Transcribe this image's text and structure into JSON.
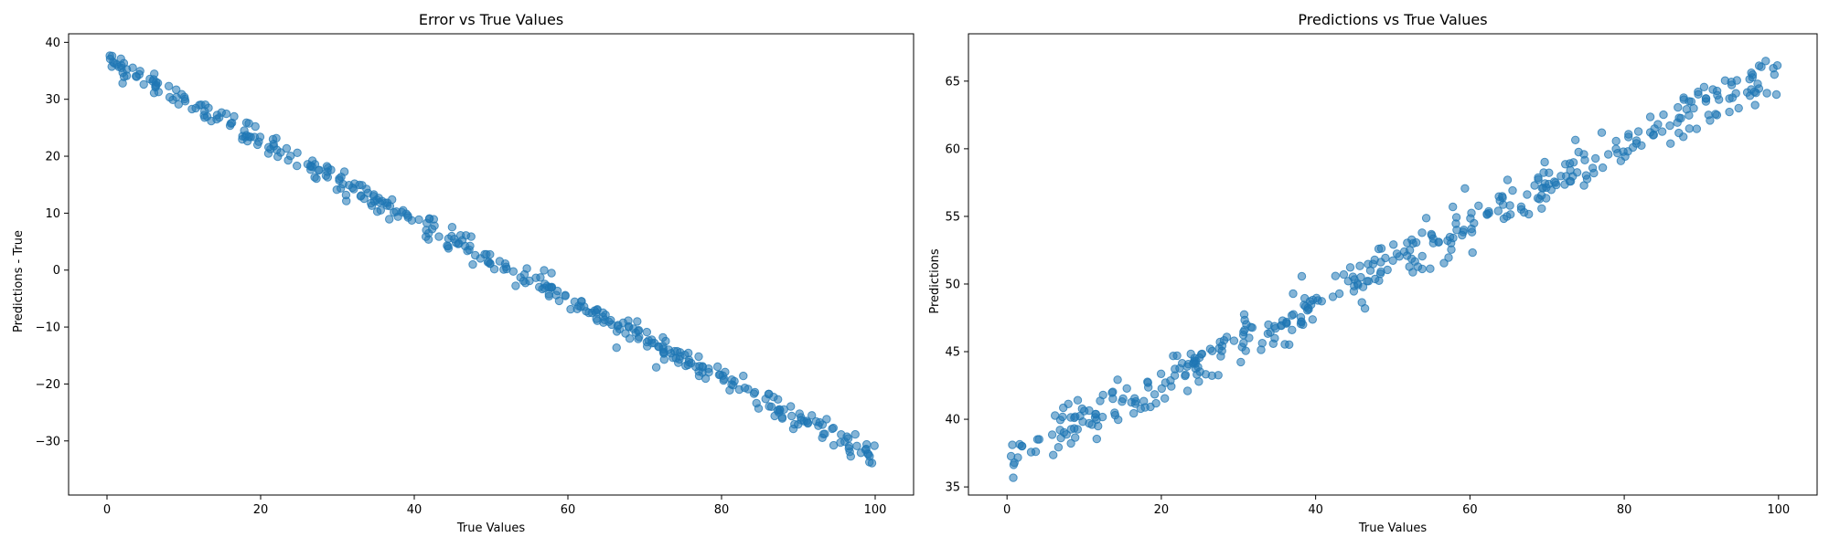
{
  "chart_data": [
    {
      "type": "scatter",
      "title": "Error vs True Values",
      "xlabel": "True Values",
      "ylabel": "Predictions - True",
      "xlim": [
        -5,
        105
      ],
      "ylim": [
        -39.5,
        41.5
      ],
      "xticks": [
        0,
        20,
        40,
        60,
        80,
        100
      ],
      "yticks": [
        -30,
        -20,
        -10,
        0,
        10,
        20,
        30,
        40
      ],
      "grid": false,
      "color": "#1f77b4",
      "trend": {
        "intercept": 37,
        "slope": -0.7,
        "noise": 1.0,
        "n": 400
      },
      "series": [
        {
          "x": [
            0,
            10,
            20,
            30,
            40,
            50,
            60,
            70,
            80,
            90,
            100
          ],
          "y": [
            37,
            30,
            23,
            16,
            9,
            2,
            -5,
            -12,
            -19,
            -26,
            -33
          ]
        }
      ]
    },
    {
      "type": "scatter",
      "title": "Predictions vs True Values",
      "xlabel": "True Values",
      "ylabel": "Predictions",
      "xlim": [
        -5,
        105
      ],
      "ylim": [
        34.4,
        68.5
      ],
      "xticks": [
        0,
        20,
        40,
        60,
        80,
        100
      ],
      "yticks": [
        35,
        40,
        45,
        50,
        55,
        60,
        65
      ],
      "grid": false,
      "color": "#1f77b4",
      "trend": {
        "intercept": 37,
        "slope": 0.29,
        "noise": 0.9,
        "n": 400
      },
      "series": [
        {
          "x": [
            0,
            10,
            20,
            30,
            40,
            50,
            60,
            70,
            80,
            90,
            100
          ],
          "y": [
            37.0,
            39.9,
            42.8,
            45.7,
            48.6,
            51.5,
            54.4,
            57.3,
            60.2,
            63.1,
            66.0
          ]
        }
      ]
    }
  ]
}
